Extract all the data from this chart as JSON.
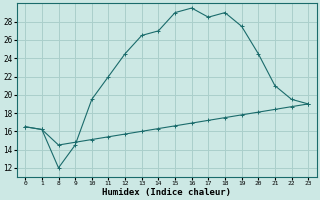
{
  "xlabel": "Humidex (Indice chaleur)",
  "bg_color": "#cce8e4",
  "grid_color": "#aacfcb",
  "line_color": "#1a6b6b",
  "x_labels": [
    "0",
    "1",
    "8",
    "9",
    "10",
    "11",
    "12",
    "13",
    "14",
    "15",
    "16",
    "17",
    "18",
    "19",
    "20",
    "21",
    "22",
    "23"
  ],
  "y_ticks": [
    12,
    14,
    16,
    18,
    20,
    22,
    24,
    26,
    28
  ],
  "ylim": [
    11.0,
    30.0
  ],
  "curve1_y": [
    16.5,
    16.2,
    12.0,
    14.5,
    19.5,
    22.0,
    24.5,
    26.5,
    27.0,
    29.0,
    29.5,
    28.5,
    29.0,
    27.5,
    24.5,
    21.0,
    19.5,
    19.0
  ],
  "curve2_y": [
    16.5,
    16.2,
    14.5,
    14.8,
    15.1,
    15.4,
    15.7,
    16.0,
    16.3,
    16.6,
    16.9,
    17.2,
    17.5,
    17.8,
    18.1,
    18.4,
    18.7,
    19.0
  ]
}
